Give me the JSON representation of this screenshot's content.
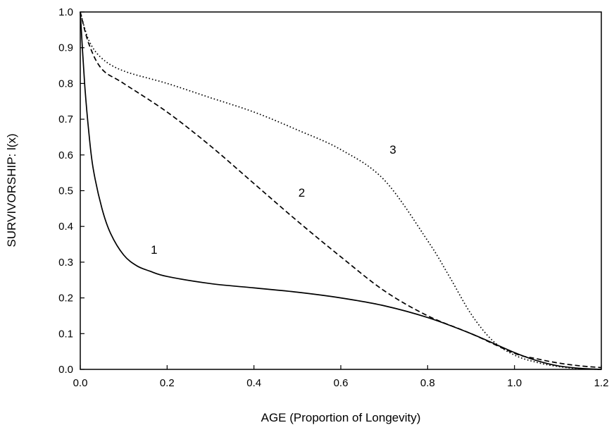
{
  "chart_data": {
    "type": "line",
    "xlabel": "AGE (Proportion of Longevity)",
    "ylabel": "SURVIVORSHIP:  l(x)",
    "xlim": [
      0,
      1.2
    ],
    "ylim": [
      0,
      1.0
    ],
    "x_ticks": [
      "0.0",
      "0.2",
      "0.4",
      "0.6",
      "0.8",
      "1.0",
      "1.2"
    ],
    "y_ticks": [
      "0.0",
      "0.1",
      "0.2",
      "0.3",
      "0.4",
      "0.5",
      "0.6",
      "0.7",
      "0.8",
      "0.9",
      "1.0"
    ],
    "grid": false,
    "legend": "none",
    "series": [
      {
        "label": "1",
        "line_style": "solid",
        "label_pos": [
          0.17,
          0.335
        ],
        "points": [
          [
            0.0,
            1.0
          ],
          [
            0.01,
            0.8
          ],
          [
            0.02,
            0.66
          ],
          [
            0.03,
            0.56
          ],
          [
            0.05,
            0.45
          ],
          [
            0.07,
            0.38
          ],
          [
            0.1,
            0.32
          ],
          [
            0.13,
            0.29
          ],
          [
            0.16,
            0.275
          ],
          [
            0.2,
            0.26
          ],
          [
            0.3,
            0.24
          ],
          [
            0.4,
            0.228
          ],
          [
            0.5,
            0.216
          ],
          [
            0.6,
            0.2
          ],
          [
            0.7,
            0.178
          ],
          [
            0.8,
            0.145
          ],
          [
            0.9,
            0.1
          ],
          [
            1.0,
            0.047
          ],
          [
            1.05,
            0.025
          ],
          [
            1.1,
            0.01
          ],
          [
            1.15,
            0.003
          ],
          [
            1.2,
            0.0
          ]
        ]
      },
      {
        "label": "2",
        "line_style": "dashed",
        "label_pos": [
          0.51,
          0.495
        ],
        "points": [
          [
            0.0,
            1.0
          ],
          [
            0.02,
            0.91
          ],
          [
            0.05,
            0.84
          ],
          [
            0.1,
            0.8
          ],
          [
            0.2,
            0.72
          ],
          [
            0.3,
            0.625
          ],
          [
            0.4,
            0.52
          ],
          [
            0.5,
            0.415
          ],
          [
            0.6,
            0.315
          ],
          [
            0.7,
            0.22
          ],
          [
            0.8,
            0.15
          ],
          [
            0.9,
            0.1
          ],
          [
            1.0,
            0.045
          ],
          [
            1.05,
            0.03
          ],
          [
            1.1,
            0.018
          ],
          [
            1.15,
            0.01
          ],
          [
            1.2,
            0.005
          ]
        ]
      },
      {
        "label": "3",
        "line_style": "dotted",
        "label_pos": [
          0.72,
          0.615
        ],
        "points": [
          [
            0.0,
            1.0
          ],
          [
            0.02,
            0.92
          ],
          [
            0.05,
            0.87
          ],
          [
            0.1,
            0.835
          ],
          [
            0.2,
            0.8
          ],
          [
            0.3,
            0.76
          ],
          [
            0.4,
            0.72
          ],
          [
            0.5,
            0.67
          ],
          [
            0.6,
            0.615
          ],
          [
            0.7,
            0.53
          ],
          [
            0.8,
            0.36
          ],
          [
            0.85,
            0.26
          ],
          [
            0.9,
            0.155
          ],
          [
            0.95,
            0.08
          ],
          [
            1.0,
            0.04
          ],
          [
            1.05,
            0.02
          ],
          [
            1.1,
            0.008
          ],
          [
            1.15,
            0.002
          ],
          [
            1.2,
            0.0
          ]
        ]
      }
    ]
  }
}
